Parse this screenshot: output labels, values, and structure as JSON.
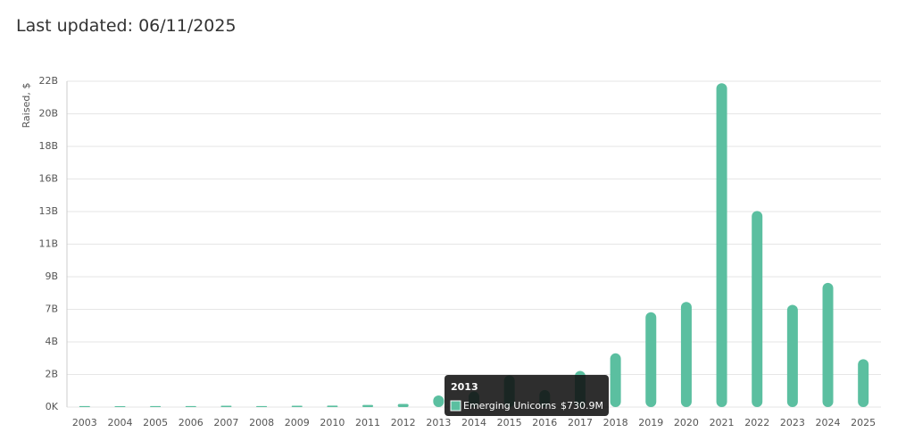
{
  "header": {
    "text": "Last updated: 06/11/2025"
  },
  "chart_data": {
    "type": "bar",
    "y_label": "Raised, $",
    "categories": [
      "2003",
      "2004",
      "2005",
      "2006",
      "2007",
      "2008",
      "2009",
      "2010",
      "2011",
      "2012",
      "2013",
      "2014",
      "2015",
      "2016",
      "2017",
      "2018",
      "2019",
      "2020",
      "2021",
      "2022",
      "2023",
      "2024",
      "2025"
    ],
    "series": [
      {
        "name": "Emerging Unicorns",
        "color": "#5bbfa0",
        "values": [
          5000000,
          0,
          10000000,
          10000000,
          30000000,
          10000000,
          30000000,
          40000000,
          80000000,
          150000000,
          730900000,
          1000000000,
          2100000000,
          1100000000,
          2400000000,
          3600000000,
          6400000000,
          7100000000,
          22000000000,
          13300000000,
          6900000000,
          8400000000,
          3200000000
        ]
      }
    ],
    "ylim": [
      0,
      22200000000
    ],
    "yticks": [
      {
        "value": 0,
        "label": "0K"
      },
      {
        "value": 2220000000,
        "label": "2B"
      },
      {
        "value": 4440000000,
        "label": "4B"
      },
      {
        "value": 6660000000,
        "label": "7B"
      },
      {
        "value": 8880000000,
        "label": "9B"
      },
      {
        "value": 11100000000,
        "label": "11B"
      },
      {
        "value": 13320000000,
        "label": "13B"
      },
      {
        "value": 15540000000,
        "label": "16B"
      },
      {
        "value": 17760000000,
        "label": "18B"
      },
      {
        "value": 19980000000,
        "label": "20B"
      },
      {
        "value": 22200000000,
        "label": "22B"
      }
    ],
    "grid": true,
    "tooltip": {
      "value_label": "$730.9M"
    }
  }
}
